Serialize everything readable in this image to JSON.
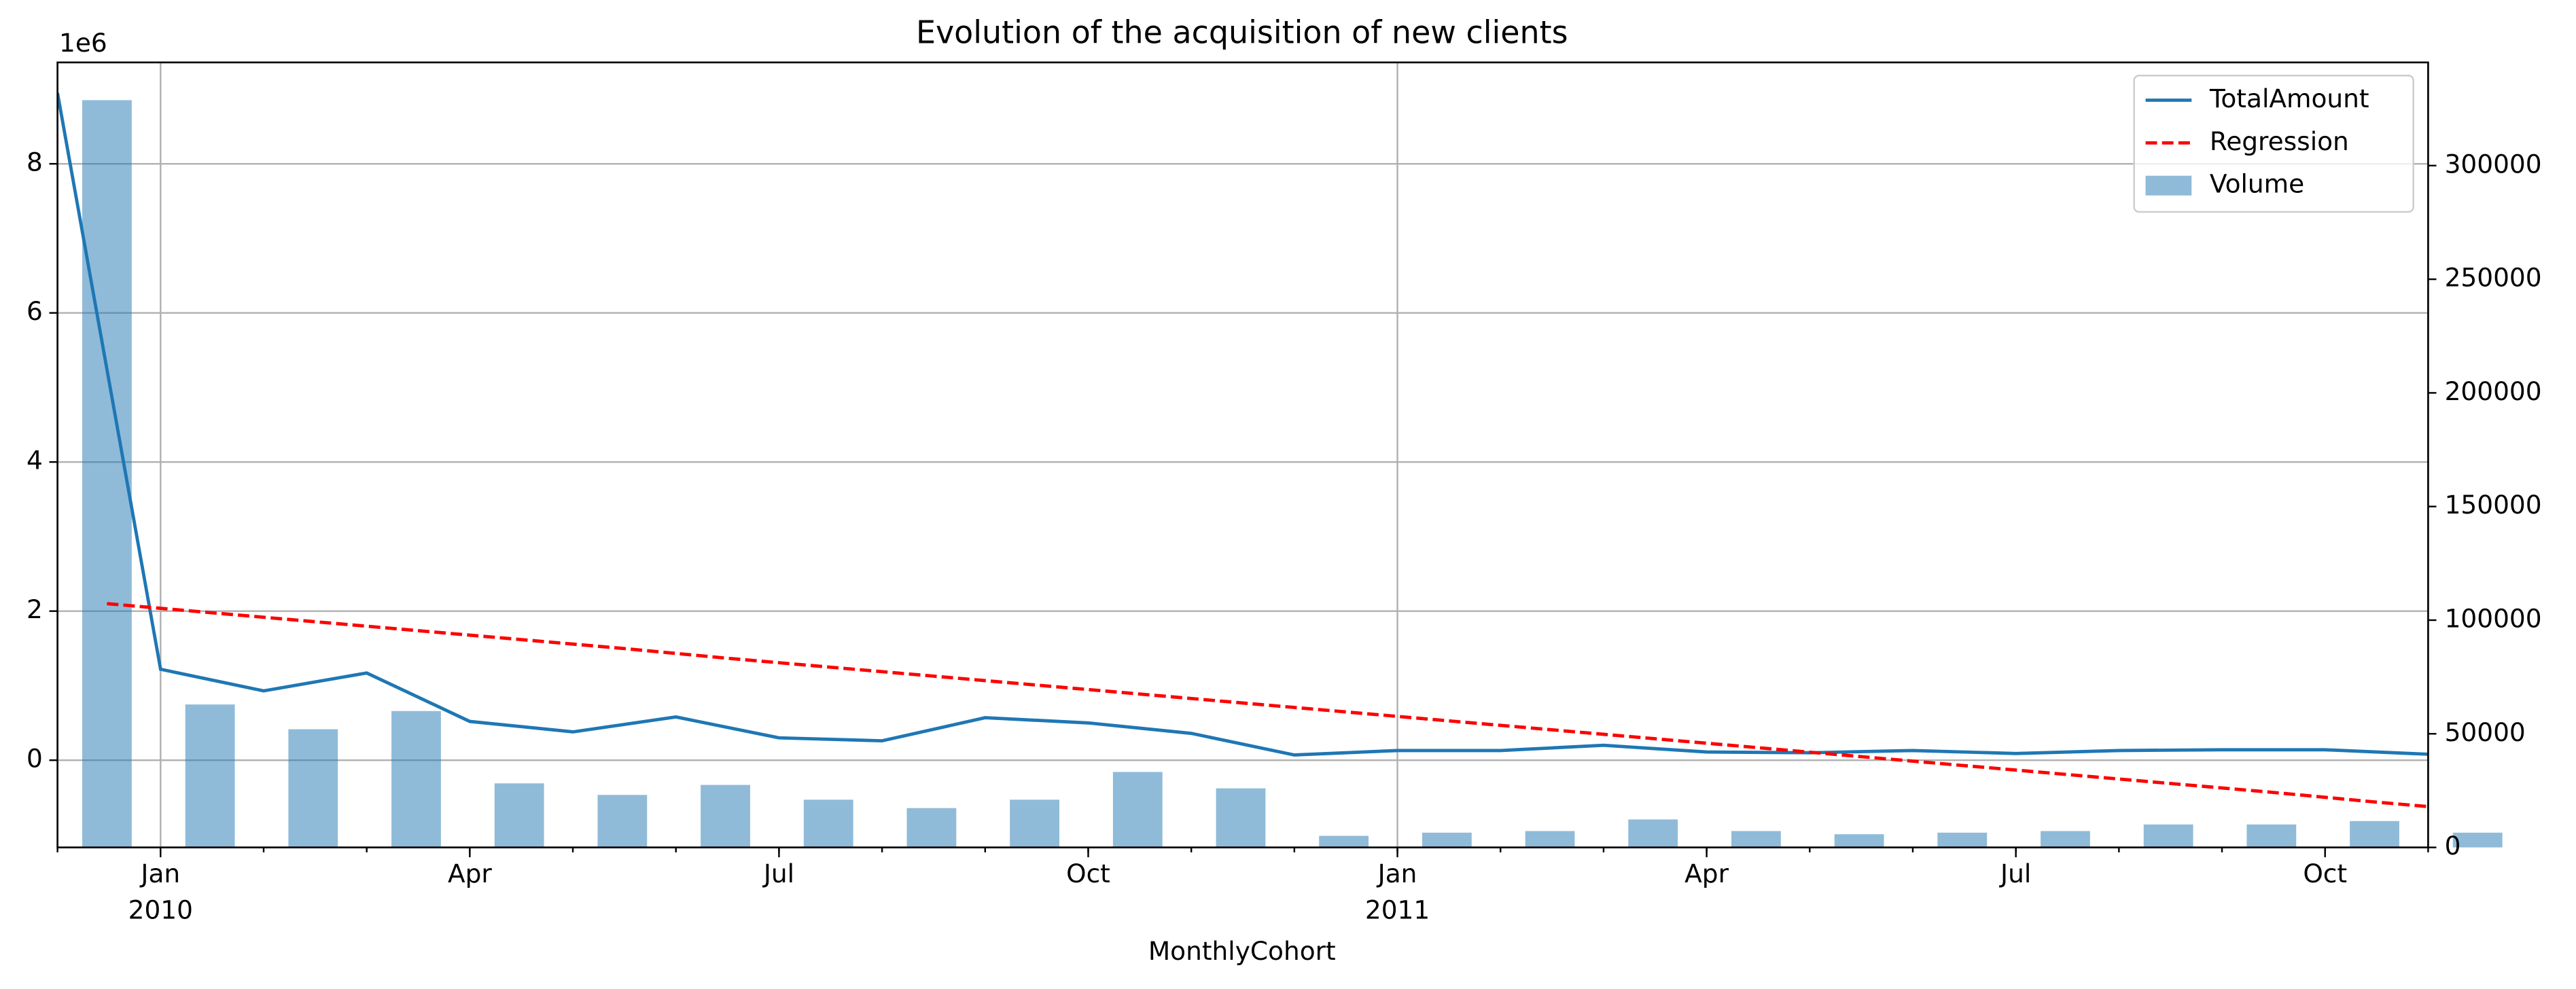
{
  "chart_data": {
    "type": "combo",
    "title": "Evolution of the acquisition of new clients",
    "xlabel": "MonthlyCohort",
    "y_offset_label": "1e6",
    "x": [
      "2009-12",
      "2010-01",
      "2010-02",
      "2010-03",
      "2010-04",
      "2010-05",
      "2010-06",
      "2010-07",
      "2010-08",
      "2010-09",
      "2010-10",
      "2010-11",
      "2010-12",
      "2011-01",
      "2011-02",
      "2011-03",
      "2011-04",
      "2011-05",
      "2011-06",
      "2011-07",
      "2011-08",
      "2011-09",
      "2011-10",
      "2011-11"
    ],
    "series": [
      {
        "name": "Volume",
        "kind": "bar",
        "axis": "y2",
        "color": "#1f77b4",
        "alpha": 0.5,
        "values": [
          328800,
          62900,
          52000,
          60000,
          28200,
          23100,
          27500,
          21000,
          17300,
          21000,
          33200,
          26000,
          5100,
          6500,
          7200,
          12300,
          7200,
          5800,
          6500,
          7200,
          10100,
          10100,
          11600,
          6500
        ]
      },
      {
        "name": "TotalAmount",
        "kind": "line",
        "color": "#1f77b4",
        "values": [
          8.95,
          1.22,
          0.93,
          1.17,
          0.52,
          0.38,
          0.58,
          0.3,
          0.26,
          0.57,
          0.5,
          0.36,
          0.07,
          0.13,
          0.13,
          0.2,
          0.11,
          0.1,
          0.13,
          0.09,
          0.13,
          0.14,
          0.14,
          0.08
        ]
      },
      {
        "name": "Regression",
        "kind": "dashed",
        "color": "#ff0000",
        "values": [
          2.1,
          1.98,
          1.86,
          1.74,
          1.62,
          1.5,
          1.37,
          1.25,
          1.13,
          1.01,
          0.89,
          0.77,
          0.65,
          0.53,
          0.41,
          0.29,
          0.17,
          0.05,
          -0.07,
          -0.19,
          -0.31,
          -0.43,
          -0.56,
          -0.68
        ]
      }
    ],
    "legend_order": [
      1,
      2,
      0
    ],
    "legend": "upper right",
    "xlim": [
      "2009-12",
      "2011-11"
    ],
    "xticks": [
      {
        "value": "2010-01",
        "label": "Jan"
      },
      {
        "value": "2010-04",
        "label": "Apr"
      },
      {
        "value": "2010-07",
        "label": "Jul"
      },
      {
        "value": "2010-10",
        "label": "Oct"
      },
      {
        "value": "2011-01",
        "label": "Jan"
      },
      {
        "value": "2011-04",
        "label": "Apr"
      },
      {
        "value": "2011-07",
        "label": "Jul"
      },
      {
        "value": "2011-10",
        "label": "Oct"
      }
    ],
    "year_ticks": [
      {
        "value": "2010-01",
        "label": "2010"
      },
      {
        "value": "2011-01",
        "label": "2011"
      }
    ],
    "ylim": [
      -1.17,
      9.36
    ],
    "yticks": [
      0,
      2,
      4,
      6,
      8
    ],
    "y2lim": [
      0,
      345400
    ],
    "y2ticks": [
      0,
      50000,
      100000,
      150000,
      200000,
      250000,
      300000
    ],
    "grid": true
  }
}
